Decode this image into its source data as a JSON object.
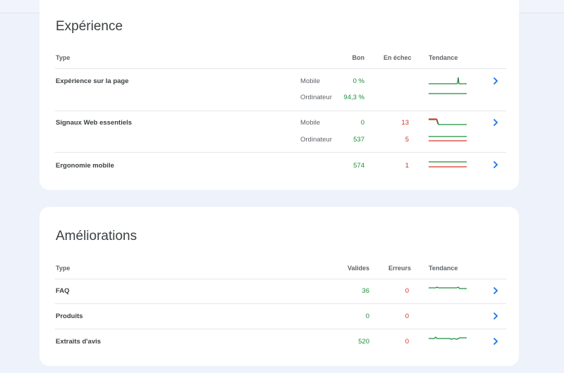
{
  "experience": {
    "title": "Expérience",
    "headers": {
      "type": "Type",
      "good": "Bon",
      "fail": "En échec",
      "trend": "Tendance"
    },
    "rows": [
      {
        "label": "Expérience sur la page",
        "devices": [
          {
            "device": "Mobile",
            "good": "0 %",
            "fail": ""
          },
          {
            "device": "Ordinateur",
            "good": "94,3 %",
            "fail": ""
          }
        ]
      },
      {
        "label": "Signaux Web essentiels",
        "devices": [
          {
            "device": "Mobile",
            "good": "0",
            "fail": "13"
          },
          {
            "device": "Ordinateur",
            "good": "537",
            "fail": "5"
          }
        ]
      },
      {
        "label": "Ergonomie mobile",
        "good": "574",
        "fail": "1"
      }
    ]
  },
  "improvements": {
    "title": "Améliorations",
    "headers": {
      "type": "Type",
      "valid": "Valides",
      "errors": "Erreurs",
      "trend": "Tendance"
    },
    "rows": [
      {
        "label": "FAQ",
        "valid": "36",
        "errors": "0"
      },
      {
        "label": "Produits",
        "valid": "0",
        "errors": "0"
      },
      {
        "label": "Extraits d'avis",
        "valid": "520",
        "errors": "0"
      }
    ]
  },
  "colors": {
    "good": "#1e8e3e",
    "bad": "#d93025",
    "link": "#1a73e8",
    "background": "#eef2fb"
  },
  "icons": {
    "row_link": "chevron-right-icon"
  }
}
